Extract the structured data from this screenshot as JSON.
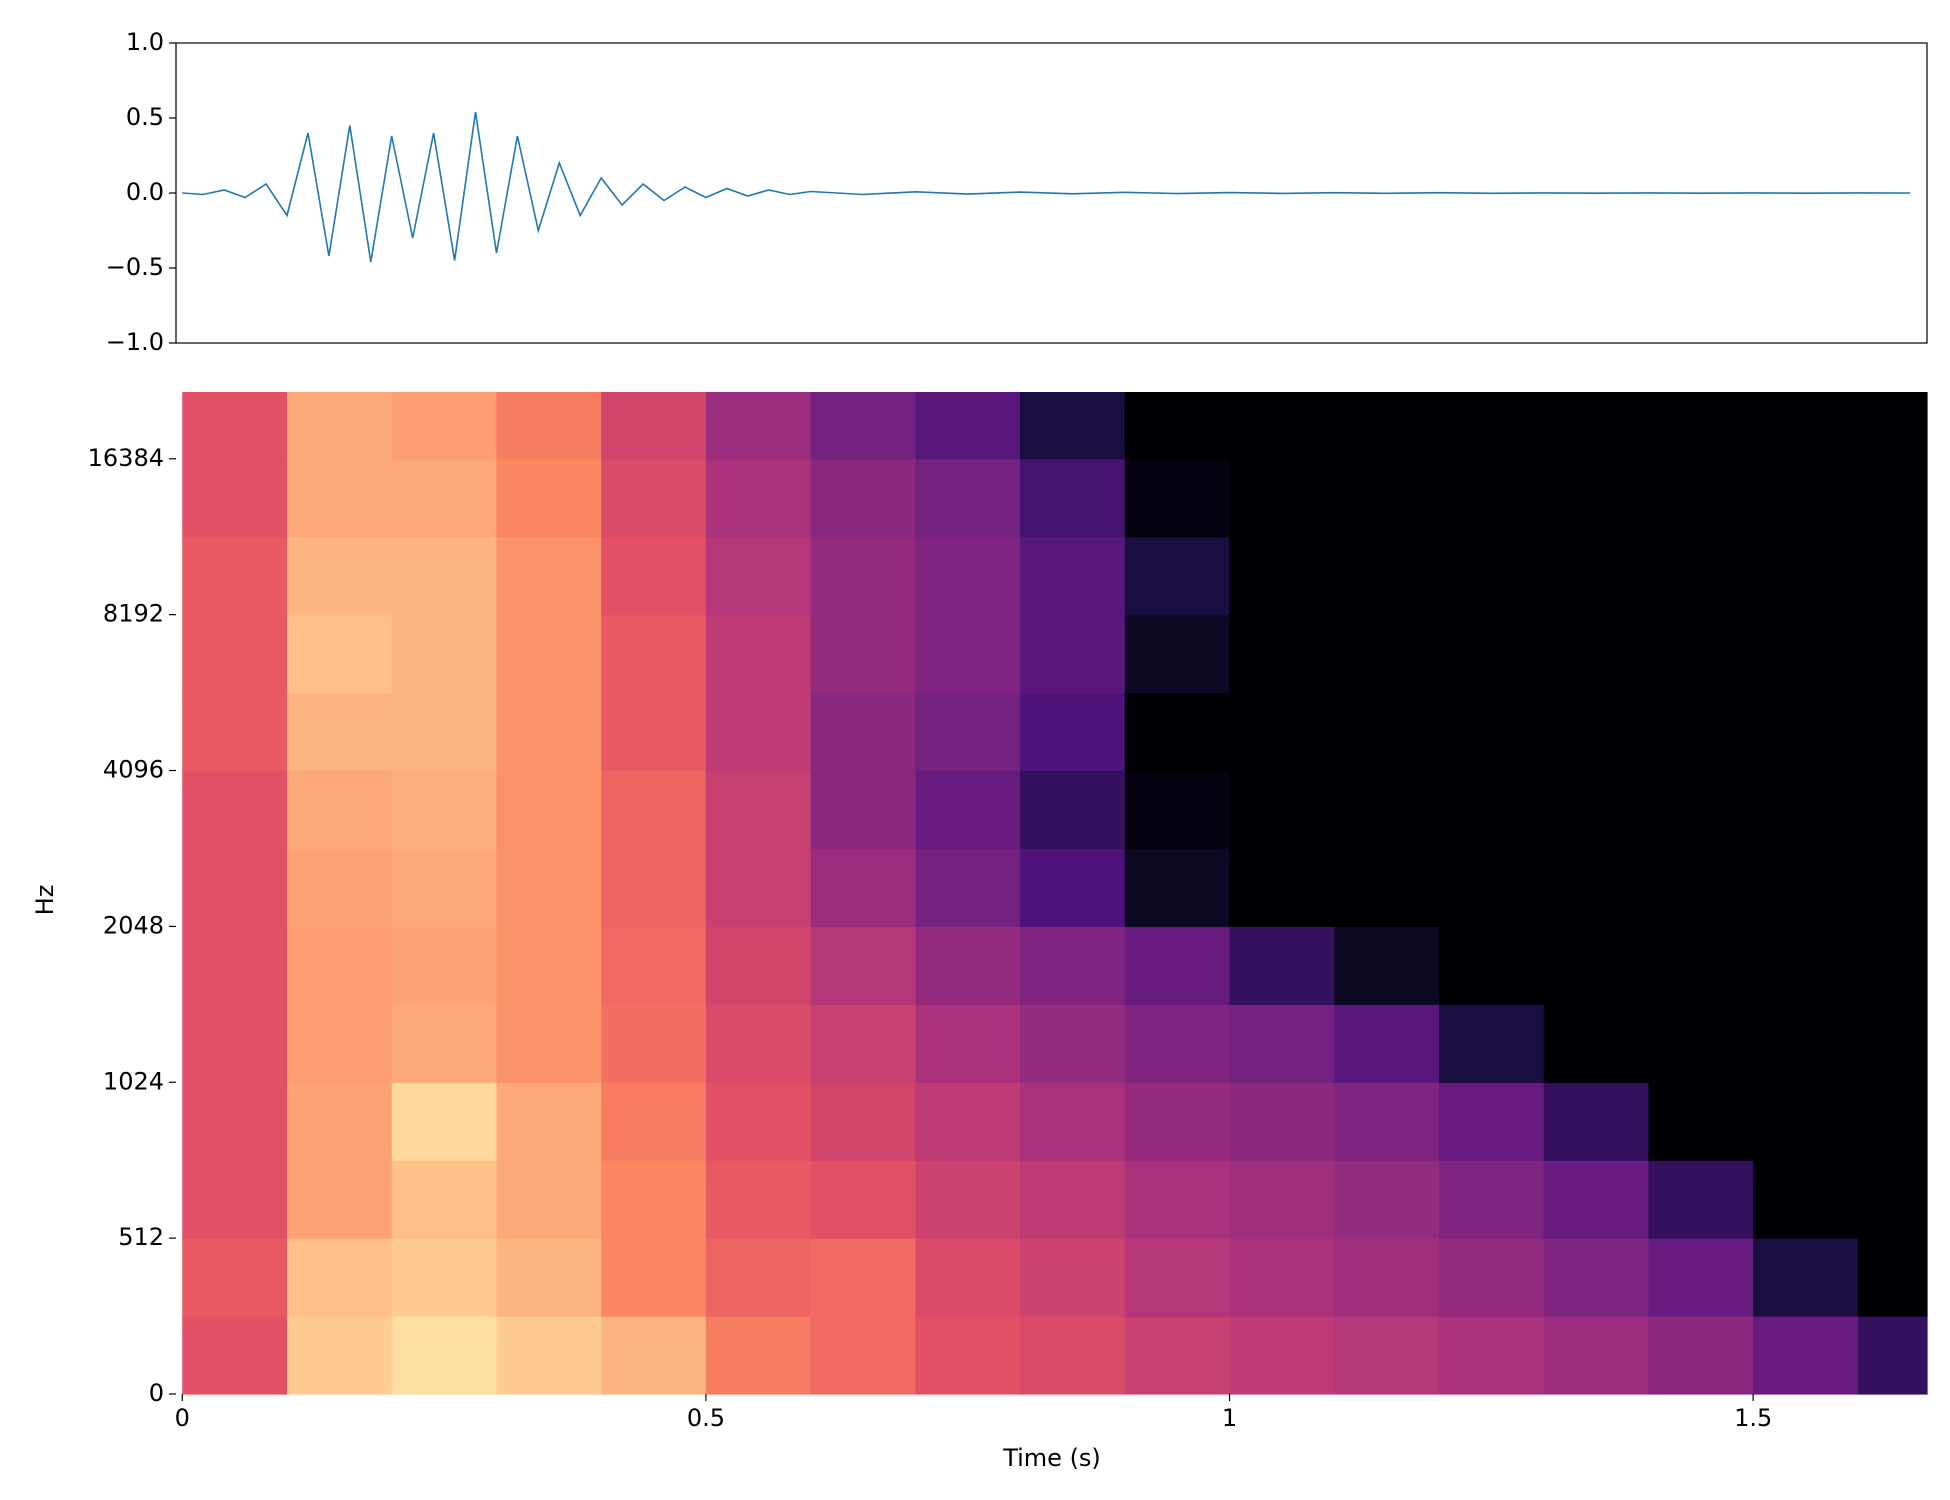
{
  "chart_data": [
    {
      "type": "line",
      "color": "#1f77b4",
      "x": [
        0,
        0.02,
        0.04,
        0.06,
        0.08,
        0.1,
        0.12,
        0.14,
        0.16,
        0.18,
        0.2,
        0.22,
        0.24,
        0.26,
        0.28,
        0.3,
        0.32,
        0.34,
        0.36,
        0.38,
        0.4,
        0.42,
        0.44,
        0.46,
        0.48,
        0.5,
        0.52,
        0.54,
        0.56,
        0.58,
        0.6,
        0.65,
        0.7,
        0.75,
        0.8,
        0.85,
        0.9,
        0.95,
        1.0,
        1.05,
        1.1,
        1.15,
        1.2,
        1.25,
        1.3,
        1.35,
        1.4,
        1.45,
        1.5,
        1.55,
        1.6,
        1.65
      ],
      "values": [
        0,
        -0.01,
        0.02,
        -0.03,
        0.06,
        -0.15,
        0.4,
        -0.42,
        0.45,
        -0.46,
        0.38,
        -0.3,
        0.4,
        -0.45,
        0.54,
        -0.4,
        0.38,
        -0.25,
        0.2,
        -0.15,
        0.1,
        -0.08,
        0.06,
        -0.05,
        0.04,
        -0.03,
        0.03,
        -0.02,
        0.02,
        -0.01,
        0.01,
        -0.01,
        0.008,
        -0.007,
        0.006,
        -0.005,
        0.005,
        -0.004,
        0.003,
        -0.003,
        0.002,
        -0.002,
        0.002,
        -0.002,
        0.001,
        -0.001,
        0.001,
        -0.001,
        0.001,
        -0.001,
        0.001,
        0
      ],
      "xlim": [
        -0.006,
        1.666
      ],
      "ylim": [
        -1,
        1
      ],
      "yticks": [
        {
          "value": -1,
          "label": "−1.0"
        },
        {
          "value": -0.5,
          "label": "−0.5"
        },
        {
          "value": 0,
          "label": "0.0"
        },
        {
          "value": 0.5,
          "label": "0.5"
        },
        {
          "value": 1,
          "label": "1.0"
        }
      ]
    },
    {
      "type": "heatmap",
      "xlabel": "Time (s)",
      "ylabel": "Hz",
      "colormap": "magma",
      "yscale": "symlog",
      "linthresh": 512,
      "base": 2,
      "xlim": [
        -0.006,
        1.666
      ],
      "ylim": [
        0,
        22050
      ],
      "zlim": [
        -80,
        0
      ],
      "xticks": [
        0,
        0.5,
        1,
        1.5
      ],
      "yticks": [
        0,
        512,
        1024,
        2048,
        4096,
        8192,
        16384
      ],
      "x": [
        0,
        0.1,
        0.2,
        0.3,
        0.4,
        0.5,
        0.6,
        0.7,
        0.8,
        0.9,
        1.0,
        1.1,
        1.2,
        1.3,
        1.4,
        1.5,
        1.6,
        1.666
      ],
      "y": [
        0,
        256,
        512,
        724,
        1024,
        1448,
        2048,
        2896,
        4096,
        5793,
        8192,
        11585,
        16384,
        22050
      ],
      "z": [
        [
          -30,
          -8,
          -5,
          -8,
          -12,
          -22,
          -25,
          -30,
          -32,
          -36,
          -38,
          -40,
          -42,
          -45,
          -48,
          -55,
          -65
        ],
        [
          -28,
          -10,
          -8,
          -12,
          -20,
          -26,
          -25,
          -32,
          -35,
          -40,
          -42,
          -44,
          -46,
          -50,
          -55,
          -70,
          -80
        ],
        [
          -30,
          -15,
          -10,
          -14,
          -20,
          -28,
          -30,
          -35,
          -38,
          -42,
          -44,
          -46,
          -50,
          -55,
          -65,
          -80,
          -80
        ],
        [
          -30,
          -15,
          -6,
          -14,
          -22,
          -30,
          -34,
          -38,
          -42,
          -46,
          -48,
          -50,
          -55,
          -65,
          -80,
          -80,
          -80
        ],
        [
          -30,
          -16,
          -14,
          -18,
          -24,
          -32,
          -36,
          -42,
          -46,
          -50,
          -52,
          -58,
          -70,
          -80,
          -80,
          -80,
          -80
        ],
        [
          -30,
          -16,
          -15,
          -18,
          -25,
          -34,
          -40,
          -46,
          -50,
          -55,
          -65,
          -75,
          -80,
          -80,
          -80,
          -80,
          -80
        ],
        [
          -30,
          -15,
          -14,
          -18,
          -26,
          -36,
          -45,
          -52,
          -60,
          -75,
          -80,
          -80,
          -80,
          -80,
          -80,
          -80,
          -80
        ],
        [
          -30,
          -14,
          -13,
          -18,
          -26,
          -36,
          -48,
          -55,
          -65,
          -78,
          -80,
          -80,
          -80,
          -80,
          -80,
          -80,
          -80
        ],
        [
          -28,
          -12,
          -12,
          -18,
          -28,
          -38,
          -48,
          -52,
          -60,
          -80,
          -80,
          -80,
          -80,
          -80,
          -80,
          -80,
          -80
        ],
        [
          -28,
          -10,
          -12,
          -18,
          -28,
          -38,
          -46,
          -50,
          -58,
          -75,
          -80,
          -80,
          -80,
          -80,
          -80,
          -80,
          -80
        ],
        [
          -28,
          -12,
          -12,
          -18,
          -30,
          -40,
          -46,
          -50,
          -58,
          -70,
          -80,
          -80,
          -80,
          -80,
          -80,
          -80,
          -80
        ],
        [
          -30,
          -14,
          -14,
          -20,
          -32,
          -42,
          -48,
          -52,
          -62,
          -78,
          -80,
          -80,
          -80,
          -80,
          -80,
          -80,
          -80
        ],
        [
          -30,
          -14,
          -16,
          -22,
          -34,
          -45,
          -52,
          -58,
          -70,
          -80,
          -80,
          -80,
          -80,
          -80,
          -80,
          -80,
          -80
        ]
      ]
    }
  ]
}
